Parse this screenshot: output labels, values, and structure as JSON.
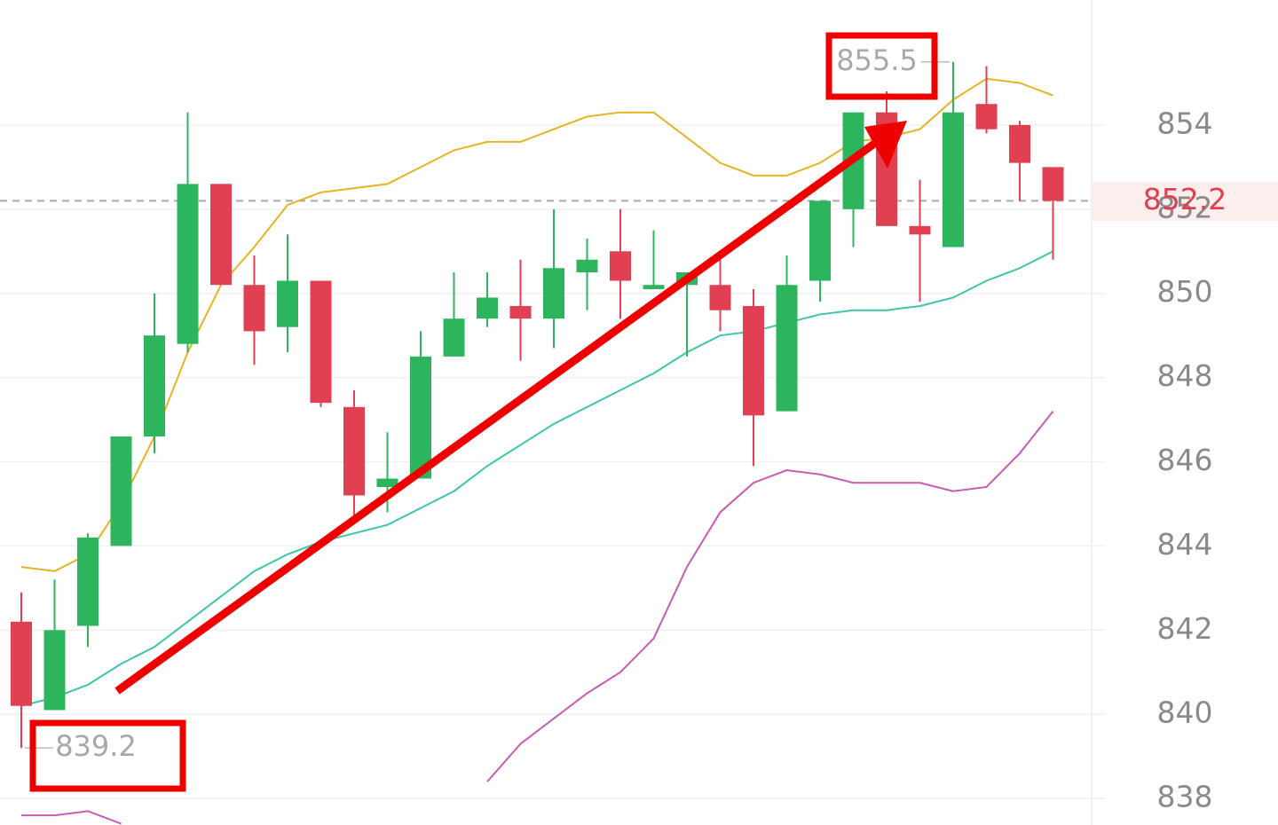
{
  "chart_data": {
    "type": "candlestick",
    "up_color": "#2db55d",
    "down_color": "#e04052",
    "open": [
      842.2,
      840.1,
      842.1,
      844.0,
      846.6,
      848.8,
      852.6,
      850.2,
      849.2,
      850.3,
      847.3,
      845.4,
      845.6,
      848.5,
      849.4,
      849.7,
      849.4,
      850.5,
      851.0,
      850.1,
      850.2,
      850.2,
      849.7,
      847.2,
      850.3,
      852.0,
      854.3,
      851.6,
      851.1,
      854.5,
      854.0,
      853.0
    ],
    "high": [
      842.9,
      843.2,
      844.3,
      846.6,
      850.0,
      854.3,
      852.6,
      850.9,
      851.4,
      850.3,
      847.7,
      846.7,
      849.1,
      850.5,
      850.5,
      850.8,
      852.0,
      851.3,
      852.0,
      851.5,
      850.5,
      850.8,
      850.1,
      850.9,
      852.2,
      854.3,
      854.8,
      852.7,
      855.5,
      855.4,
      854.1,
      853.0
    ],
    "low": [
      839.2,
      840.1,
      841.6,
      844.0,
      846.2,
      848.6,
      850.2,
      848.3,
      848.6,
      847.3,
      844.7,
      844.8,
      845.6,
      848.5,
      849.2,
      848.4,
      848.7,
      849.6,
      849.4,
      850.1,
      848.5,
      849.1,
      845.9,
      847.2,
      849.8,
      851.1,
      851.6,
      849.8,
      851.1,
      853.8,
      852.2,
      850.8
    ],
    "close": [
      840.2,
      842.0,
      844.2,
      846.6,
      849.0,
      852.6,
      850.2,
      849.1,
      850.3,
      847.4,
      845.2,
      845.6,
      848.5,
      849.4,
      849.9,
      849.4,
      850.6,
      850.8,
      850.3,
      850.2,
      850.5,
      849.6,
      847.1,
      850.2,
      852.2,
      854.3,
      851.6,
      851.4,
      854.3,
      853.9,
      853.1,
      852.2
    ],
    "lines": [
      {
        "color": "#e6b422",
        "values": [
          843.5,
          843.4,
          843.8,
          845.0,
          846.6,
          848.6,
          850.2,
          851.1,
          852.1,
          852.4,
          852.5,
          852.6,
          853.0,
          853.4,
          853.6,
          853.6,
          853.9,
          854.2,
          854.3,
          854.3,
          853.7,
          853.1,
          852.8,
          852.8,
          853.1,
          853.6,
          853.7,
          853.9,
          854.6,
          855.1,
          855.0,
          854.7
        ]
      },
      {
        "color": "#3cc5a8",
        "values": [
          840.2,
          840.4,
          840.7,
          841.2,
          841.6,
          842.2,
          842.8,
          843.4,
          843.8,
          844.1,
          844.3,
          844.5,
          844.9,
          845.3,
          845.9,
          846.4,
          846.9,
          847.3,
          847.7,
          848.1,
          848.6,
          849.0,
          849.1,
          849.3,
          849.5,
          849.6,
          849.6,
          849.7,
          849.9,
          850.3,
          850.6,
          851.0
        ]
      },
      {
        "color": "#c85bb5",
        "values": [
          837.6,
          837.6,
          837.7,
          837.4,
          null,
          null,
          null,
          null,
          null,
          null,
          null,
          null,
          null,
          null,
          838.4,
          839.3,
          839.9,
          840.5,
          841.0,
          841.8,
          843.5,
          844.8,
          845.5,
          845.8,
          845.7,
          845.5,
          845.5,
          845.5,
          845.3,
          845.4,
          846.2,
          847.2
        ]
      }
    ],
    "ylim": [
      837.37,
      856.97
    ],
    "yticks": [
      838,
      840,
      842,
      844,
      846,
      848,
      850,
      852,
      854
    ],
    "grid": true,
    "last_price": 852.2,
    "max_label": 855.5,
    "min_label": 839.2
  }
}
